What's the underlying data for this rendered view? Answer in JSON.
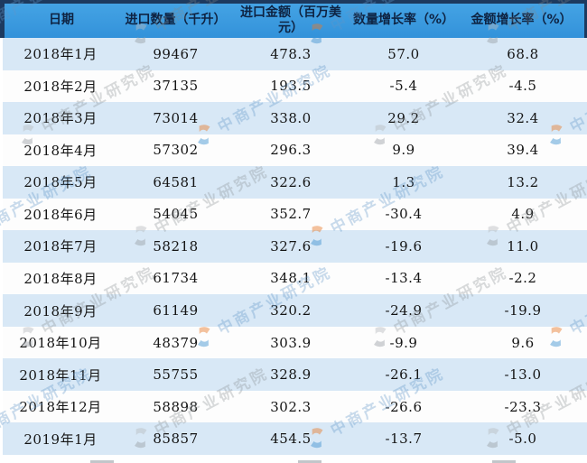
{
  "chart_data": {
    "type": "table",
    "columns": [
      "日期",
      "进口数量（千升）",
      "进口金额（百万美元）",
      "数量增长率（%）",
      "金额增长率（%）"
    ],
    "rows": [
      [
        "2018年1月",
        "99467",
        "478.3",
        "57.0",
        "68.8"
      ],
      [
        "2018年2月",
        "37135",
        "193.5",
        "-5.4",
        "-4.5"
      ],
      [
        "2018年3月",
        "73014",
        "338.0",
        "29.2",
        "32.4"
      ],
      [
        "2018年4月",
        "57302",
        "296.3",
        "9.9",
        "39.4"
      ],
      [
        "2018年5月",
        "64581",
        "322.6",
        "1.3",
        "13.2"
      ],
      [
        "2018年6月",
        "54045",
        "352.7",
        "-30.4",
        "4.9"
      ],
      [
        "2018年7月",
        "58218",
        "327.6",
        "-19.6",
        "11.0"
      ],
      [
        "2018年8月",
        "61734",
        "348.1",
        "-13.4",
        "-2.2"
      ],
      [
        "2018年9月",
        "61149",
        "320.2",
        "-24.9",
        "-19.9"
      ],
      [
        "2018年10月",
        "48379",
        "303.9",
        "-9.9",
        "9.6"
      ],
      [
        "2018年11月",
        "55755",
        "328.9",
        "-26.1",
        "-13.0"
      ],
      [
        "2018年12月",
        "58898",
        "302.3",
        "-26.6",
        "-23.3"
      ],
      [
        "2019年1月",
        "85857",
        "454.5",
        "-13.7",
        "-5.0"
      ]
    ]
  },
  "watermark": {
    "text": "中商产业研究院",
    "logo": "askci-circle-logo"
  },
  "colors": {
    "header_bg": "#3898de",
    "header_border": "#1d3a5f",
    "header_text": "#0e2342",
    "row_alt_bg": "#d8e8f6",
    "row_bg": "#fdfdfd",
    "body_text": "#141414",
    "watermark_blue": "#6096c8",
    "watermark_gray": "#82878c",
    "logo_orange": "#e87a2a",
    "logo_blue": "#3a8fd0"
  }
}
